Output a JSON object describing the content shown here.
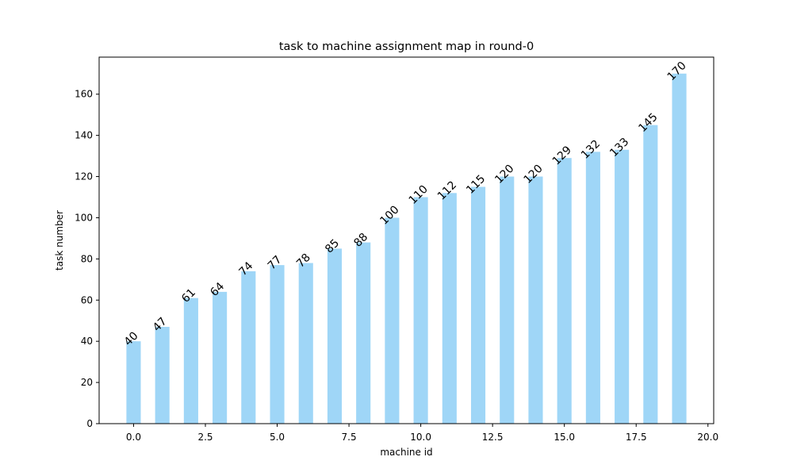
{
  "chart_data": {
    "type": "bar",
    "title": "task to machine assignment map in round-0",
    "xlabel": "machine id",
    "ylabel": "task number",
    "x": [
      0,
      1,
      2,
      3,
      4,
      5,
      6,
      7,
      8,
      9,
      10,
      11,
      12,
      13,
      14,
      15,
      16,
      17,
      18,
      19
    ],
    "values": [
      40,
      47,
      61,
      64,
      74,
      77,
      78,
      85,
      88,
      100,
      110,
      112,
      115,
      120,
      120,
      129,
      132,
      133,
      145,
      170
    ],
    "xlim": [
      -1.2,
      20.2
    ],
    "ylim": [
      0,
      178
    ],
    "xticks": [
      0.0,
      2.5,
      5.0,
      7.5,
      10.0,
      12.5,
      15.0,
      17.5,
      20.0
    ],
    "xtick_labels": [
      "0.0",
      "2.5",
      "5.0",
      "7.5",
      "10.0",
      "12.5",
      "15.0",
      "17.5",
      "20.0"
    ],
    "yticks": [
      0,
      20,
      40,
      60,
      80,
      100,
      120,
      140,
      160
    ],
    "ytick_labels": [
      "0",
      "20",
      "40",
      "60",
      "80",
      "100",
      "120",
      "140",
      "160"
    ],
    "bar_color": "#9fd6f7",
    "bar_width": 0.5,
    "grid": false,
    "legend": "none"
  }
}
